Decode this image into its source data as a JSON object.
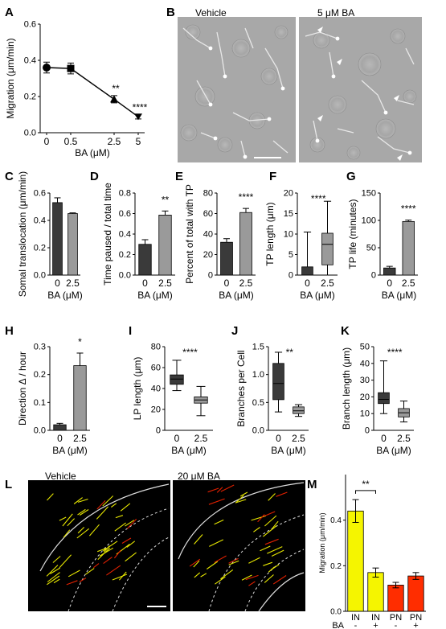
{
  "panel_letters": {
    "A": "A",
    "B": "B",
    "C": "C",
    "D": "D",
    "E": "E",
    "F": "F",
    "G": "G",
    "H": "H",
    "I": "I",
    "J": "J",
    "K": "K",
    "L": "L",
    "M": "M"
  },
  "micrograph_B": {
    "left_label": "Vehicle",
    "right_label": "5 μM BA"
  },
  "micrograph_L": {
    "left_label": "Vehicle",
    "right_label": "20 μM BA"
  },
  "colors": {
    "dark": "#3a3a3a",
    "light": "#9a9a9a",
    "yellow": "#f5f500",
    "red": "#ff2d00",
    "trace_yellow": "#e6e600",
    "trace_red": "#e02000"
  },
  "chart_data": [
    {
      "id": "A",
      "type": "line",
      "x": [
        "0",
        "0.5",
        "2.5",
        "5"
      ],
      "values": [
        0.36,
        0.355,
        0.185,
        0.088
      ],
      "errors": [
        0.03,
        0.03,
        0.02,
        0.012
      ],
      "markers": [
        "circle",
        "square",
        "triangle",
        "triangle-down"
      ],
      "xlabel": "BA (μM)",
      "ylabel": "Migration (μm/min)",
      "ylim": [
        0,
        0.6
      ],
      "yticks": [
        "0.0",
        "0.2",
        "0.4",
        "0.6"
      ],
      "annotations": [
        {
          "x": "2.5",
          "text": "**"
        },
        {
          "x": "5",
          "text": "****"
        }
      ]
    },
    {
      "id": "C",
      "type": "bar",
      "categories": [
        "0",
        "2.5"
      ],
      "values": [
        0.53,
        0.45
      ],
      "errors": [
        0.035,
        0.005
      ],
      "xlabel": "BA (μM)",
      "ylabel": "Somal translocation (μm/min)",
      "ylim": [
        0,
        0.6
      ],
      "yticks": [
        "0.0",
        "0.2",
        "0.4",
        "0.6"
      ],
      "annotations": []
    },
    {
      "id": "D",
      "type": "bar",
      "categories": [
        "0",
        "2.5"
      ],
      "values": [
        0.3,
        0.585
      ],
      "errors": [
        0.045,
        0.04
      ],
      "xlabel": "BA (μM)",
      "ylabel": "Time paused / total time",
      "ylim": [
        0,
        0.8
      ],
      "yticks": [
        "0.0",
        "0.2",
        "0.4",
        "0.6",
        "0.8"
      ],
      "annotations": [
        "**"
      ]
    },
    {
      "id": "E",
      "type": "bar",
      "categories": [
        "0",
        "2.5"
      ],
      "values": [
        32,
        61
      ],
      "errors": [
        3.5,
        4
      ],
      "xlabel": "BA (μM)",
      "ylabel": "Percent of total with TP",
      "ylim": [
        0,
        80
      ],
      "yticks": [
        "0",
        "20",
        "40",
        "60",
        "80"
      ],
      "annotations": [
        "****"
      ]
    },
    {
      "id": "F",
      "type": "box",
      "categories": [
        "0",
        "2.5"
      ],
      "boxes": [
        {
          "min": 0,
          "q1": 0,
          "median": 0,
          "q3": 2,
          "max": 10.5
        },
        {
          "min": 0,
          "q1": 2.5,
          "median": 7.5,
          "q3": 10.2,
          "max": 18
        }
      ],
      "xlabel": "BA (μM)",
      "ylabel": "TP length (μm)",
      "ylim": [
        0,
        20
      ],
      "yticks": [
        "0",
        "5",
        "10",
        "15",
        "20"
      ],
      "annotations": [
        "****"
      ]
    },
    {
      "id": "G",
      "type": "bar",
      "categories": [
        "0",
        "2.5"
      ],
      "values": [
        13,
        98
      ],
      "errors": [
        3,
        2.5
      ],
      "xlabel": "BA (μM)",
      "ylabel": "TP life (minutes)",
      "ylim": [
        0,
        150
      ],
      "yticks": [
        "0",
        "50",
        "100",
        "150"
      ],
      "annotations": [
        "****"
      ]
    },
    {
      "id": "H",
      "type": "bar",
      "categories": [
        "0",
        "2.5"
      ],
      "values": [
        0.02,
        0.232
      ],
      "errors": [
        0.005,
        0.045
      ],
      "xlabel": "BA (μM)",
      "ylabel": "Direction Δ / hour",
      "ylim": [
        0,
        0.3
      ],
      "yticks": [
        "0.0",
        "0.1",
        "0.2",
        "0.3"
      ],
      "annotations": [
        "*"
      ]
    },
    {
      "id": "I",
      "type": "box",
      "categories": [
        "0",
        "2.5"
      ],
      "boxes": [
        {
          "min": 38,
          "q1": 44,
          "median": 49,
          "q3": 53,
          "max": 67
        },
        {
          "min": 14,
          "q1": 26,
          "median": 29,
          "q3": 32,
          "max": 42
        }
      ],
      "xlabel": "BA (μM)",
      "ylabel": "LP length (μm)",
      "ylim": [
        0,
        80
      ],
      "yticks": [
        "0",
        "20",
        "40",
        "60",
        "80"
      ],
      "annotations": [
        "****"
      ]
    },
    {
      "id": "J",
      "type": "box",
      "categories": [
        "0",
        "2.5"
      ],
      "boxes": [
        {
          "min": 0.33,
          "q1": 0.55,
          "median": 0.84,
          "q3": 1.2,
          "max": 1.4
        },
        {
          "min": 0.25,
          "q1": 0.3,
          "median": 0.35,
          "q3": 0.42,
          "max": 0.46
        }
      ],
      "xlabel": "BA (μM)",
      "ylabel": "Branches per Cell",
      "ylim": [
        0,
        1.5
      ],
      "yticks": [
        "0.0",
        "0.5",
        "1.0",
        "1.5"
      ],
      "annotations": [
        "**"
      ]
    },
    {
      "id": "K",
      "type": "box",
      "categories": [
        "0",
        "2.5"
      ],
      "boxes": [
        {
          "min": 10,
          "q1": 16,
          "median": 18.5,
          "q3": 22.5,
          "max": 41.5
        },
        {
          "min": 5,
          "q1": 8,
          "median": 10.5,
          "q3": 13,
          "max": 17.5
        }
      ],
      "xlabel": "BA (μM)",
      "ylabel": "Branch length (μm)",
      "ylim": [
        0,
        50
      ],
      "yticks": [
        "0",
        "10",
        "20",
        "30",
        "40",
        "50"
      ],
      "annotations": [
        "****"
      ]
    },
    {
      "id": "M",
      "type": "bar",
      "categories": [
        "IN",
        "IN",
        "PN",
        "PN"
      ],
      "ba": [
        "-",
        "+",
        "-",
        "+"
      ],
      "ba_label": "BA",
      "values": [
        0.44,
        0.17,
        0.115,
        0.155
      ],
      "errors": [
        0.05,
        0.02,
        0.012,
        0.015
      ],
      "colors": [
        "#f5f500",
        "#f5f500",
        "#ff2d00",
        "#ff2d00"
      ],
      "ylabel": "Migration (μm/min)",
      "ylim": [
        0,
        0.6
      ],
      "yticks": [
        "0.0",
        "0.2",
        "0.4"
      ],
      "annotations": [
        "**"
      ]
    }
  ]
}
